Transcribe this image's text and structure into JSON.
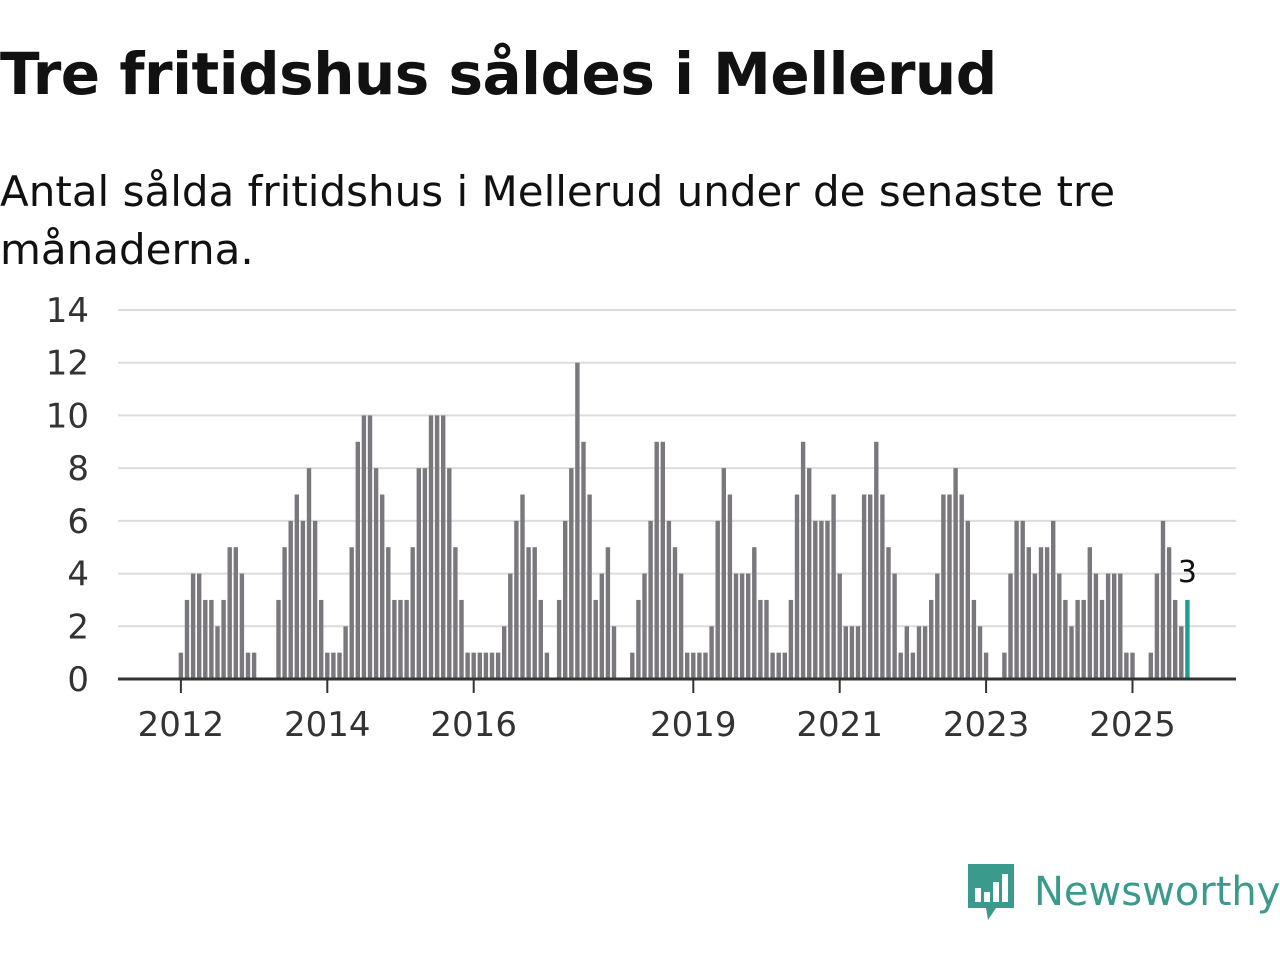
{
  "title": "Tre fritidshus såldes i Mellerud",
  "subtitle": "Antal sålda fritidshus i Mellerud under de senaste tre månaderna.",
  "brand": {
    "name": "Newsworthy",
    "icon": "newsworthy-logo-icon",
    "color": "#3a9a8c"
  },
  "chart_data": {
    "type": "bar",
    "title": "",
    "xlabel": "",
    "ylabel": "",
    "ylim": [
      0,
      14
    ],
    "yticks": [
      0,
      2,
      4,
      6,
      8,
      10,
      12,
      14
    ],
    "grid": true,
    "legend": "none",
    "bar_color": "#7a787c",
    "highlight_color": "#1aa091",
    "x_start": "2011-11",
    "x_ticks": [
      {
        "date": "2012-01",
        "label": "2012"
      },
      {
        "date": "2014-01",
        "label": "2014"
      },
      {
        "date": "2016-01",
        "label": "2016"
      },
      {
        "date": "2019-01",
        "label": "2019"
      },
      {
        "date": "2021-01",
        "label": "2021"
      },
      {
        "date": "2023-01",
        "label": "2023"
      },
      {
        "date": "2025-01",
        "label": "2025"
      }
    ],
    "values": [
      0,
      0,
      1,
      3,
      4,
      4,
      3,
      3,
      2,
      3,
      5,
      5,
      4,
      1,
      1,
      0,
      0,
      0,
      3,
      5,
      6,
      7,
      6,
      8,
      6,
      3,
      1,
      1,
      1,
      2,
      5,
      9,
      10,
      10,
      8,
      7,
      5,
      3,
      3,
      3,
      5,
      8,
      8,
      10,
      10,
      10,
      8,
      5,
      3,
      1,
      1,
      1,
      1,
      1,
      1,
      2,
      4,
      6,
      7,
      5,
      5,
      3,
      1,
      0,
      3,
      6,
      8,
      12,
      9,
      7,
      3,
      4,
      5,
      2,
      0,
      0,
      1,
      3,
      4,
      6,
      9,
      9,
      6,
      5,
      4,
      1,
      1,
      1,
      1,
      2,
      6,
      8,
      7,
      4,
      4,
      4,
      5,
      3,
      3,
      1,
      1,
      1,
      3,
      7,
      9,
      8,
      6,
      6,
      6,
      7,
      4,
      2,
      2,
      2,
      7,
      7,
      9,
      7,
      5,
      4,
      1,
      2,
      1,
      2,
      2,
      3,
      4,
      7,
      7,
      8,
      7,
      6,
      3,
      2,
      1,
      0,
      0,
      1,
      4,
      6,
      6,
      5,
      4,
      5,
      5,
      6,
      4,
      3,
      2,
      3,
      3,
      5,
      4,
      3,
      4,
      4,
      4,
      1,
      1,
      0,
      0,
      1,
      4,
      6,
      5,
      3,
      2,
      3
    ],
    "highlight_last": 1,
    "annotation": "3"
  }
}
